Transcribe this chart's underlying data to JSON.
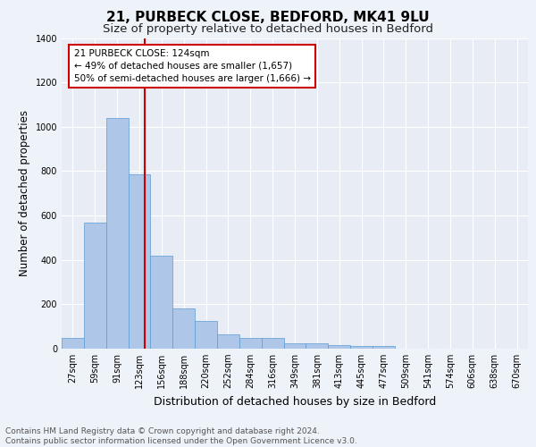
{
  "title_line1": "21, PURBECK CLOSE, BEDFORD, MK41 9LU",
  "title_line2": "Size of property relative to detached houses in Bedford",
  "xlabel": "Distribution of detached houses by size in Bedford",
  "ylabel": "Number of detached properties",
  "categories": [
    "27sqm",
    "59sqm",
    "91sqm",
    "123sqm",
    "156sqm",
    "188sqm",
    "220sqm",
    "252sqm",
    "284sqm",
    "316sqm",
    "349sqm",
    "381sqm",
    "413sqm",
    "445sqm",
    "477sqm",
    "509sqm",
    "541sqm",
    "574sqm",
    "606sqm",
    "638sqm",
    "670sqm"
  ],
  "values": [
    50,
    570,
    1040,
    785,
    420,
    180,
    125,
    65,
    50,
    50,
    25,
    25,
    18,
    12,
    12,
    0,
    0,
    0,
    0,
    0,
    0
  ],
  "bar_color": "#aec6e8",
  "bar_edge_color": "#5a9bd4",
  "red_line_x": 3.25,
  "annotation_text": "21 PURBECK CLOSE: 124sqm\n← 49% of detached houses are smaller (1,657)\n50% of semi-detached houses are larger (1,666) →",
  "annotation_box_color": "#ffffff",
  "annotation_box_edge_color": "#cc0000",
  "ylim": [
    0,
    1400
  ],
  "yticks": [
    0,
    200,
    400,
    600,
    800,
    1000,
    1200,
    1400
  ],
  "background_color": "#eef2f9",
  "plot_background": "#e8edf5",
  "grid_color": "#ffffff",
  "footer_text": "Contains HM Land Registry data © Crown copyright and database right 2024.\nContains public sector information licensed under the Open Government Licence v3.0.",
  "title_fontsize": 11,
  "subtitle_fontsize": 9.5,
  "xlabel_fontsize": 9,
  "ylabel_fontsize": 8.5,
  "tick_fontsize": 7,
  "annotation_fontsize": 7.5,
  "footer_fontsize": 6.5
}
